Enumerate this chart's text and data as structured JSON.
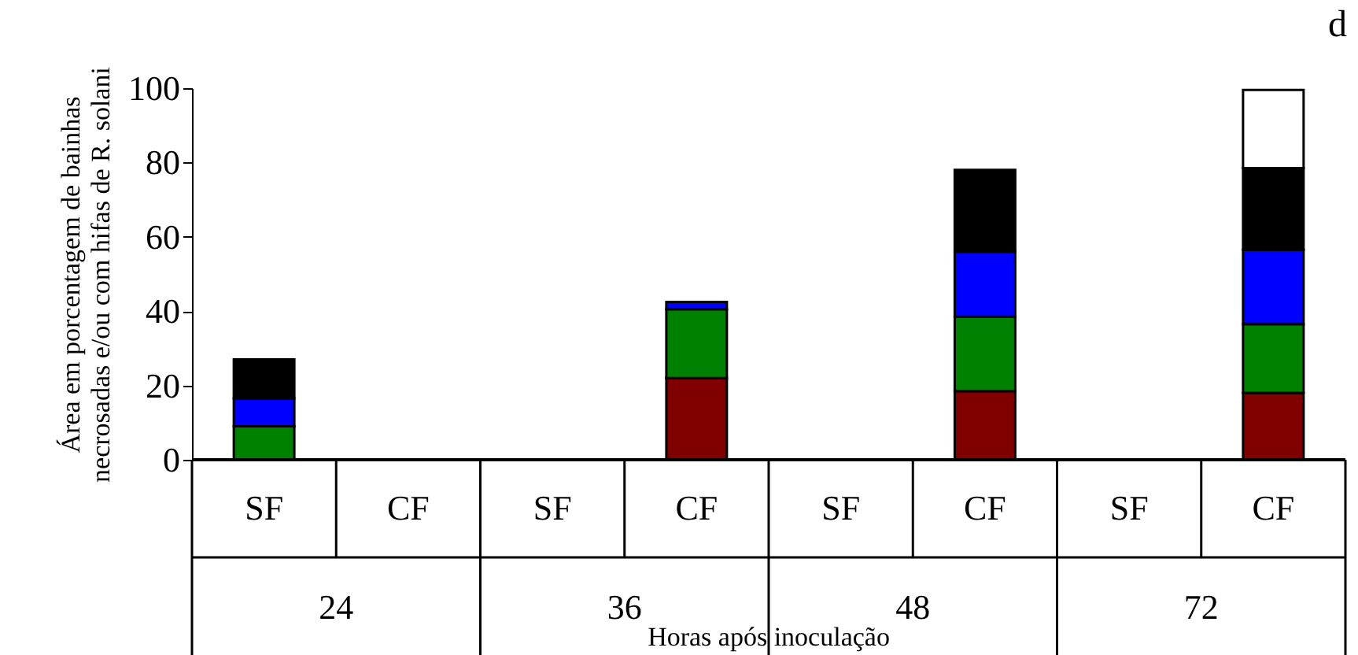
{
  "chart_data": {
    "type": "bar",
    "stacked": true,
    "title": "d",
    "categories": [
      "SF",
      "CF",
      "SF",
      "CF",
      "SF",
      "CF",
      "SF",
      "CF"
    ],
    "series": [
      {
        "color": "#800000",
        "values": [
          0,
          0,
          0,
          22,
          0,
          18.5,
          0,
          18
        ]
      },
      {
        "color": "#008000",
        "values": [
          9,
          0,
          0,
          18.5,
          0,
          20,
          0,
          18.5
        ]
      },
      {
        "color": "#0000ff",
        "values": [
          7.5,
          0,
          0,
          2,
          0,
          17.5,
          0,
          20
        ]
      },
      {
        "color": "#000000",
        "values": [
          10.5,
          0,
          0,
          0,
          0,
          22,
          0,
          22
        ]
      },
      {
        "color": "#ffffff",
        "values": [
          0,
          0,
          0,
          0,
          0,
          0,
          0,
          21
        ]
      }
    ],
    "annotations": [
      "24",
      "36",
      "48",
      "72"
    ],
    "xlabel": "Horas após inoculação",
    "ylabel": "Área em porcentagem de bainhas\nnecrosadas e/ou com hifas de R. solani",
    "ylim": [
      0,
      100
    ],
    "yticks": [
      0,
      20,
      40,
      60,
      80,
      100
    ],
    "grid": false
  }
}
